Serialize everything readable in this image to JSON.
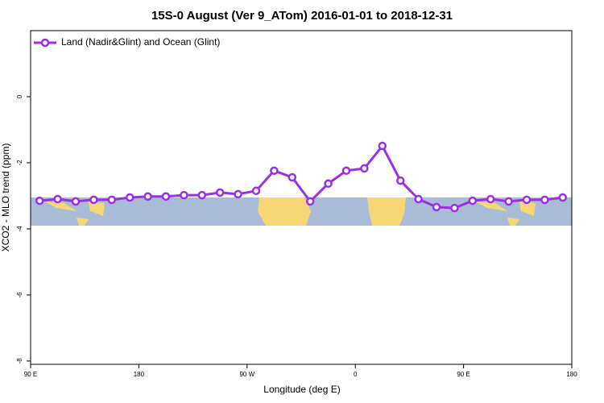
{
  "chart_data": {
    "type": "line",
    "title": "15S-0 August (Ver 9_ATom)   2016-01-01 to 2018-12-31",
    "x_label": "Longitude (deg E)",
    "y_label": "XCO2 - MLO trend (ppm)",
    "xlim": [
      90,
      540
    ],
    "ylim": [
      -8.1,
      2.0
    ],
    "xticks": [
      {
        "value": 90,
        "label": "90 E"
      },
      {
        "value": 180,
        "label": "180"
      },
      {
        "value": 270,
        "label": "90 W"
      },
      {
        "value": 360,
        "label": "0"
      },
      {
        "value": 450,
        "label": "90 E"
      },
      {
        "value": 540,
        "label": "180"
      }
    ],
    "yticks": [
      0,
      -2,
      -4,
      -6,
      -8
    ],
    "legend": "top-left",
    "series": [
      {
        "name": "Land (Nadir&Glint) and Ocean (Glint)",
        "color": "#9b30e0",
        "x": [
          97.5,
          112.5,
          127.5,
          142.5,
          157.5,
          172.5,
          187.5,
          202.5,
          217.5,
          232.5,
          247.5,
          262.5,
          277.5,
          292.5,
          307.5,
          322.5,
          337.5,
          352.5,
          367.5,
          382.5,
          397.5,
          412.5,
          427.5,
          442.5,
          457.5,
          472.5,
          487.5,
          502.5,
          517.5,
          532.5
        ],
        "values": [
          -3.15,
          -3.1,
          -3.17,
          -3.12,
          -3.12,
          -3.05,
          -3.02,
          -3.02,
          -2.98,
          -2.98,
          -2.9,
          -2.95,
          -2.85,
          -2.24,
          -2.44,
          -3.17,
          -2.63,
          -2.24,
          -2.17,
          -1.49,
          -2.54,
          -3.1,
          -3.34,
          -3.37,
          -3.15,
          -3.1,
          -3.17,
          -3.12,
          -3.12,
          -3.05
        ]
      }
    ]
  }
}
